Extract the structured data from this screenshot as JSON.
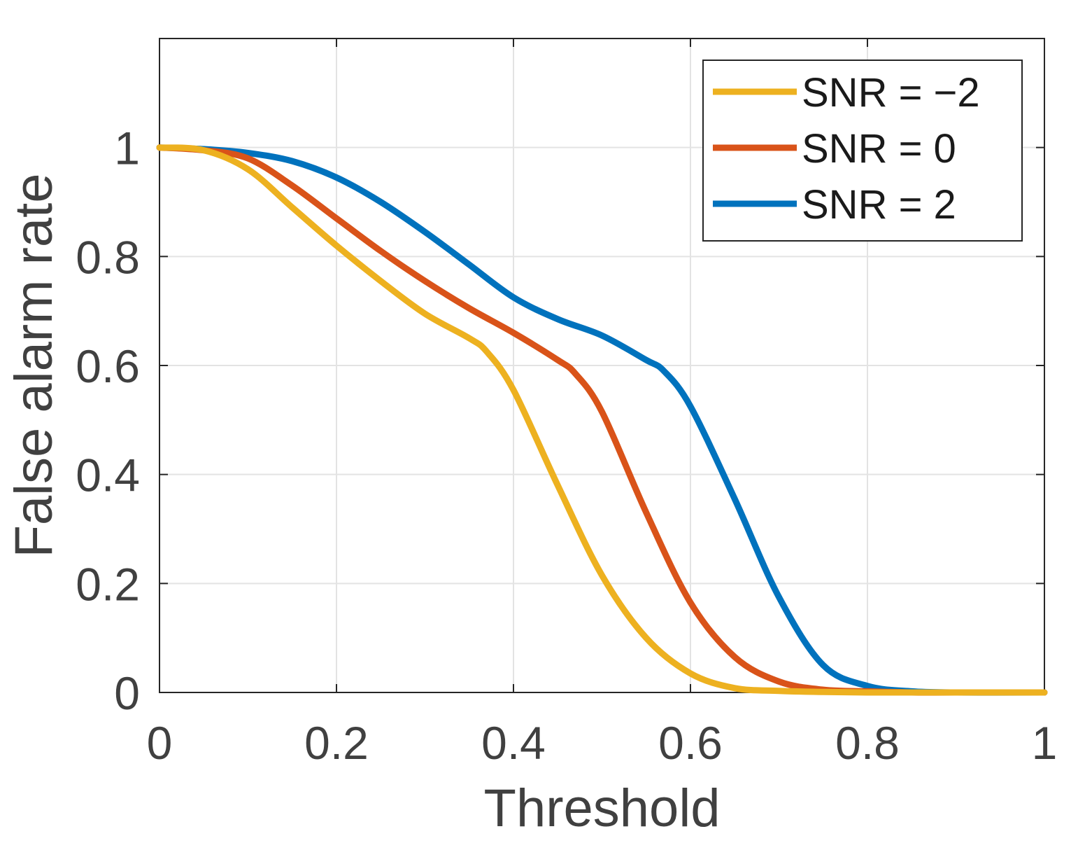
{
  "chart_data": {
    "type": "line",
    "title": "",
    "xlabel": "Threshold",
    "ylabel": "False alarm rate",
    "xlim": [
      0,
      1
    ],
    "ylim": [
      0,
      1.2
    ],
    "xticks": [
      0,
      0.2,
      0.4,
      0.6,
      0.8,
      1
    ],
    "xtick_labels": [
      "0",
      "0.2",
      "0.4",
      "0.6",
      "0.8",
      "1"
    ],
    "yticks": [
      0,
      0.2,
      0.4,
      0.6,
      0.8,
      1
    ],
    "ytick_labels": [
      "0",
      "0.2",
      "0.4",
      "0.6",
      "0.8",
      "1"
    ],
    "grid": true,
    "legend_position": "top-right",
    "series": [
      {
        "name": "SNR = −2",
        "color": "#EDB120",
        "x": [
          0,
          0.05,
          0.1,
          0.15,
          0.2,
          0.25,
          0.3,
          0.35,
          0.37,
          0.4,
          0.45,
          0.5,
          0.55,
          0.6,
          0.65,
          0.7,
          0.75,
          0.8,
          0.85,
          0.9,
          0.95,
          1
        ],
        "y": [
          1,
          0.995,
          0.96,
          0.89,
          0.82,
          0.755,
          0.695,
          0.65,
          0.625,
          0.555,
          0.38,
          0.215,
          0.1,
          0.035,
          0.008,
          0.003,
          0.001,
          0,
          0,
          0,
          0,
          0
        ]
      },
      {
        "name": "SNR = 0",
        "color": "#D95319",
        "x": [
          0,
          0.05,
          0.1,
          0.15,
          0.2,
          0.25,
          0.3,
          0.35,
          0.4,
          0.45,
          0.47,
          0.5,
          0.55,
          0.6,
          0.65,
          0.7,
          0.75,
          0.8,
          0.85,
          0.9,
          1
        ],
        "y": [
          1,
          0.995,
          0.98,
          0.93,
          0.87,
          0.81,
          0.755,
          0.705,
          0.66,
          0.61,
          0.585,
          0.515,
          0.33,
          0.165,
          0.065,
          0.02,
          0.005,
          0.002,
          0,
          0,
          0
        ]
      },
      {
        "name": "SNR = 2",
        "color": "#0072BD",
        "x": [
          0,
          0.05,
          0.1,
          0.15,
          0.2,
          0.25,
          0.3,
          0.35,
          0.4,
          0.45,
          0.5,
          0.55,
          0.57,
          0.6,
          0.65,
          0.7,
          0.75,
          0.8,
          0.85,
          0.9,
          1
        ],
        "y": [
          1,
          0.997,
          0.99,
          0.975,
          0.945,
          0.9,
          0.845,
          0.785,
          0.725,
          0.685,
          0.655,
          0.61,
          0.59,
          0.525,
          0.355,
          0.175,
          0.05,
          0.012,
          0.002,
          0,
          0
        ]
      }
    ]
  }
}
